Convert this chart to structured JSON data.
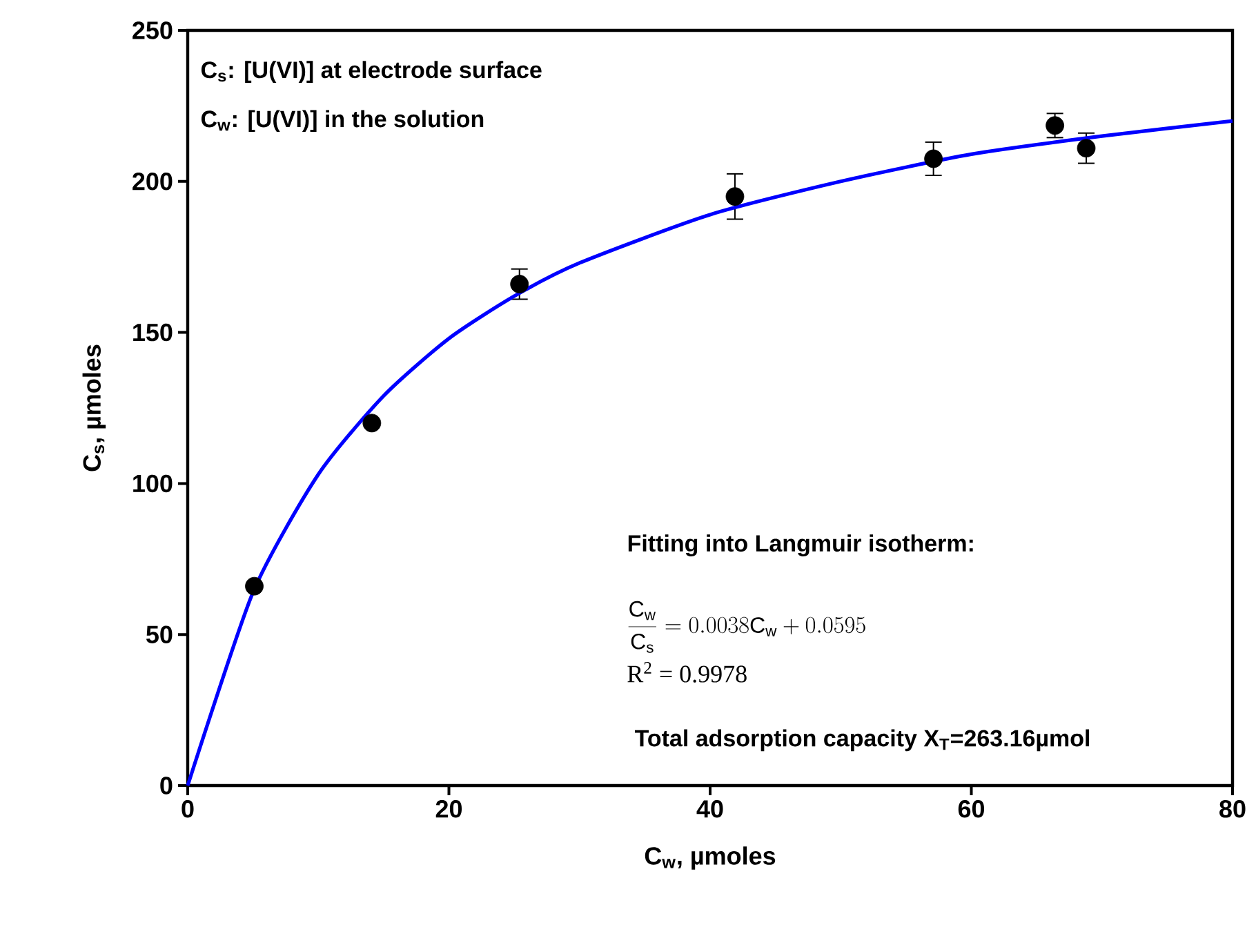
{
  "chart_data": {
    "type": "scatter",
    "xlabel": "C$_{w}$, µmoles",
    "ylabel": "C$_{s}$, µmoles",
    "xlim": [
      0,
      80
    ],
    "xticks": [
      0,
      20,
      40,
      60,
      80
    ],
    "ylim": [
      0,
      250
    ],
    "yticks": [
      0,
      50,
      100,
      150,
      200,
      250
    ],
    "grid": false,
    "series": [
      {
        "color": "#000000",
        "x": [
          5.1,
          14.1,
          25.4,
          41.9,
          57.1,
          66.4,
          68.8
        ],
        "values": [
          66,
          120,
          166,
          195,
          207.5,
          218.5,
          211
        ],
        "errors": [
          null,
          null,
          5,
          7.5,
          5.5,
          4,
          5
        ]
      },
      {
        "type": "line",
        "color": "#0000ff",
        "line_style": "solid",
        "x": [
          0,
          5,
          10,
          15,
          20,
          25,
          30,
          40,
          50,
          60,
          70,
          80
        ],
        "values": [
          0,
          64,
          103,
          129,
          148,
          162,
          173,
          189,
          200,
          209,
          215,
          220
        ]
      }
    ],
    "annotations": [
      "C$_{s}$: [U(VI)] at electrode surface",
      "C$_{w}$: [U(VI)] in the solution",
      "Fitting into Langmuir isotherm:",
      "\\frac{\\mathrm{C_w}}{\\mathrm{C_s}}=0.0038\\mathrm{C_w}+0.0595",
      "R$^{2}$ = 0.9978",
      "Total adsorption capacity X$_{T}$=263.16µmol"
    ]
  }
}
